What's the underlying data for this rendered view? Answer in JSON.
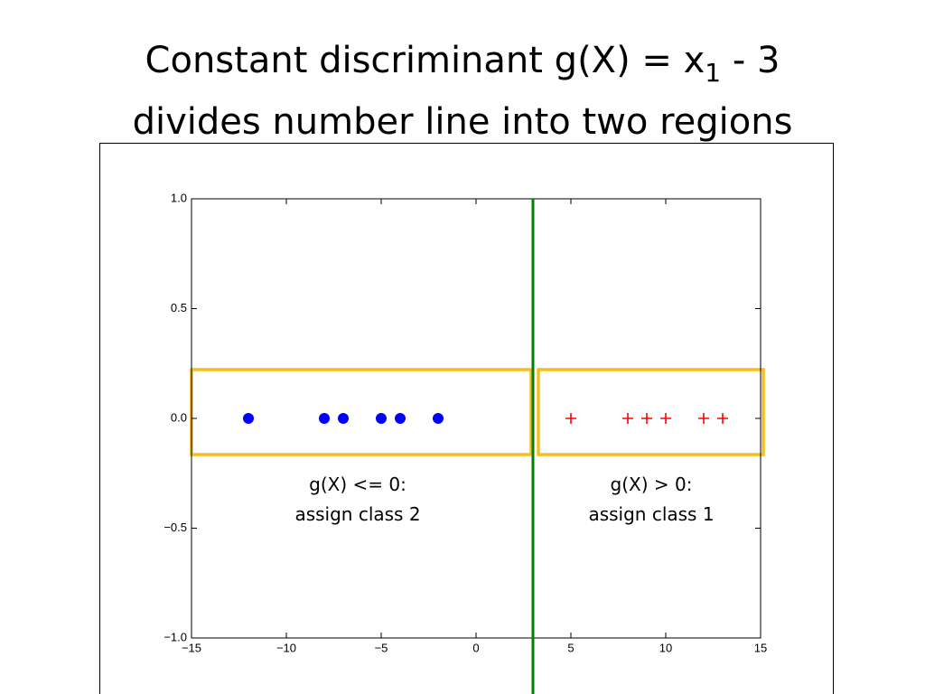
{
  "title": {
    "before_subscript": "Constant discriminant g(X) = x",
    "subscript": "1",
    "after_subscript": " - 3",
    "line2": "divides number line into two regions"
  },
  "chart_data": {
    "type": "scatter",
    "xlim": [
      -15,
      15
    ],
    "ylim": [
      -1.0,
      1.0
    ],
    "xticks": [
      {
        "value": -15,
        "label": "−15"
      },
      {
        "value": -10,
        "label": "−10"
      },
      {
        "value": -5,
        "label": "−5"
      },
      0,
      5,
      10,
      15
    ],
    "yticks": [
      {
        "value": -1.0,
        "label": "−1.0"
      },
      {
        "value": -0.5,
        "label": "−0.5"
      },
      {
        "value": 0.0,
        "label": "0.0"
      },
      {
        "value": 0.5,
        "label": "0.5"
      },
      {
        "value": 1.0,
        "label": "1.0"
      }
    ],
    "grid": false,
    "series": [
      {
        "color": "#0000ff",
        "marker": "circle",
        "x": [
          -12,
          -8,
          -7,
          -5,
          -4,
          -2
        ],
        "values": [
          0,
          0,
          0,
          0,
          0,
          0
        ]
      },
      {
        "color": "#ff0000",
        "marker": "plus",
        "x": [
          5,
          8,
          9,
          10,
          12,
          13
        ],
        "values": [
          0,
          0,
          0,
          0,
          0,
          0
        ]
      }
    ],
    "boundary": {
      "x": 3,
      "color": "#008000"
    },
    "annotations": [
      {
        "lines": [
          "g(X) <= 0:",
          "assign class 2"
        ]
      },
      {
        "lines": [
          "g(X) > 0:",
          "assign class 1"
        ]
      }
    ]
  }
}
